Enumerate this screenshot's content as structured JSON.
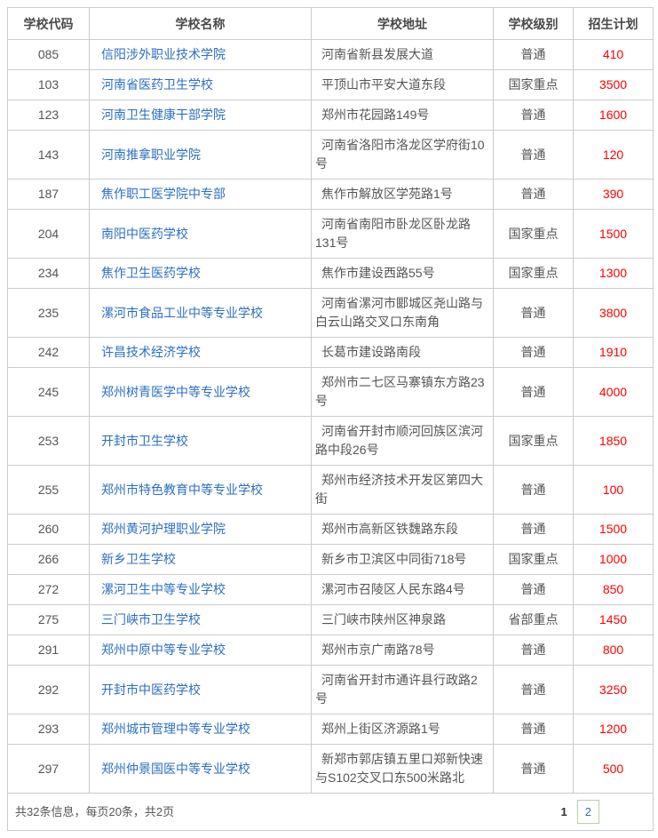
{
  "table": {
    "headers": [
      {
        "key": "code",
        "label": "学校代码"
      },
      {
        "key": "name",
        "label": "学校名称"
      },
      {
        "key": "address",
        "label": "学校地址"
      },
      {
        "key": "level",
        "label": "学校级别"
      },
      {
        "key": "plan",
        "label": "招生计划"
      }
    ],
    "rows": [
      {
        "code": "085",
        "name": "信阳涉外职业技术学院",
        "address": "河南省新县发展大道",
        "level": "普通",
        "plan": "410"
      },
      {
        "code": "103",
        "name": "河南省医药卫生学校",
        "address": "平顶山市平安大道东段",
        "level": "国家重点",
        "plan": "3500"
      },
      {
        "code": "123",
        "name": "河南卫生健康干部学院",
        "address": "郑州市花园路149号",
        "level": "普通",
        "plan": "1600"
      },
      {
        "code": "143",
        "name": "河南推拿职业学院",
        "address": "河南省洛阳市洛龙区学府街10号",
        "level": "普通",
        "plan": "120"
      },
      {
        "code": "187",
        "name": "焦作职工医学院中专部",
        "address": "焦作市解放区学苑路1号",
        "level": "普通",
        "plan": "390"
      },
      {
        "code": "204",
        "name": "南阳中医药学校",
        "address": "河南省南阳市卧龙区卧龙路131号",
        "level": "国家重点",
        "plan": "1500"
      },
      {
        "code": "234",
        "name": "焦作卫生医药学校",
        "address": "焦作市建设西路55号",
        "level": "国家重点",
        "plan": "1300"
      },
      {
        "code": "235",
        "name": "漯河市食品工业中等专业学校",
        "address": "河南省漯河市郾城区尧山路与白云山路交叉口东南角",
        "level": "普通",
        "plan": "3800"
      },
      {
        "code": "242",
        "name": "许昌技术经济学校",
        "address": "长葛市建设路南段",
        "level": "普通",
        "plan": "1910"
      },
      {
        "code": "245",
        "name": "郑州树青医学中等专业学校",
        "address": "郑州市二七区马寨镇东方路23号",
        "level": "普通",
        "plan": "4000"
      },
      {
        "code": "253",
        "name": "开封市卫生学校",
        "address": "河南省开封市顺河回族区滨河路中段26号",
        "level": "国家重点",
        "plan": "1850"
      },
      {
        "code": "255",
        "name": "郑州市特色教育中等专业学校",
        "address": "郑州市经济技术开发区第四大街",
        "level": "普通",
        "plan": "100"
      },
      {
        "code": "260",
        "name": "郑州黄河护理职业学院",
        "address": "郑州市高新区铁魏路东段",
        "level": "普通",
        "plan": "1500"
      },
      {
        "code": "266",
        "name": "新乡卫生学校",
        "address": "新乡市卫滨区中同街718号",
        "level": "国家重点",
        "plan": "1000"
      },
      {
        "code": "272",
        "name": "漯河卫生中等专业学校",
        "address": "漯河市召陵区人民东路4号",
        "level": "普通",
        "plan": "850"
      },
      {
        "code": "275",
        "name": "三门峡市卫生学校",
        "address": "三门峡市陕州区神泉路",
        "level": "省部重点",
        "plan": "1450"
      },
      {
        "code": "291",
        "name": "郑州中原中等专业学校",
        "address": "郑州市京广南路78号",
        "level": "普通",
        "plan": "800"
      },
      {
        "code": "292",
        "name": "开封市中医药学校",
        "address": "河南省开封市通许县行政路2号",
        "level": "普通",
        "plan": "3250"
      },
      {
        "code": "293",
        "name": "郑州城市管理中等专业学校",
        "address": "郑州上街区济源路1号",
        "level": "普通",
        "plan": "1200"
      },
      {
        "code": "297",
        "name": "郑州仲景国医中等专业学校",
        "address": "新郑市郭店镇五里口郑新快速与S102交叉口东500米路北",
        "level": "普通",
        "plan": "500"
      }
    ]
  },
  "footer": {
    "summary": "共32条信息，每页20条，共2页",
    "pages": [
      {
        "label": "1",
        "current": true
      },
      {
        "label": "2",
        "current": false
      }
    ]
  },
  "colors": {
    "link_blue": "#2b6fc2",
    "plan_red": "#ff0000",
    "border_gray": "#cccccc",
    "page_box_border": "#b7d1a4"
  }
}
